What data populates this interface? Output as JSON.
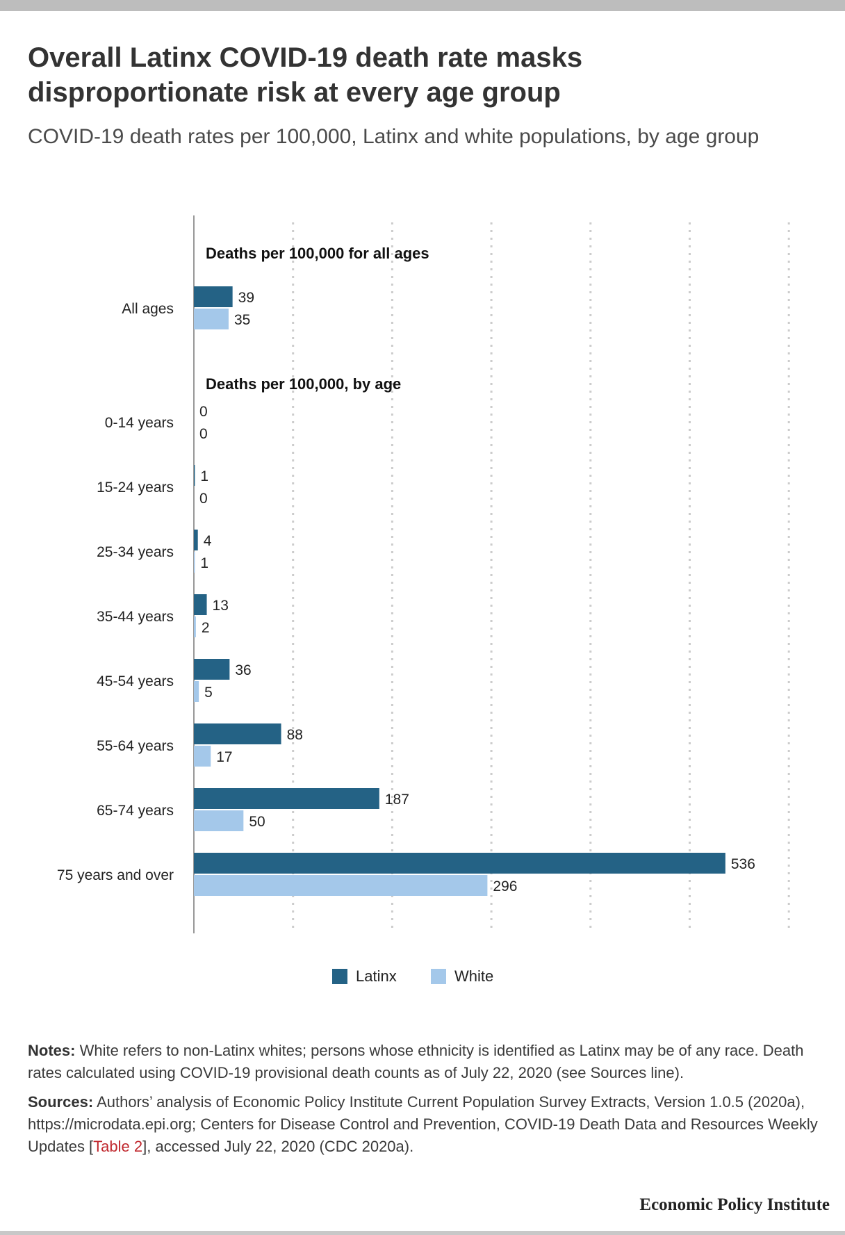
{
  "title": "Overall Latinx COVID-19 death rate masks disproportionate risk at every age group",
  "subtitle": "COVID-19 death rates per 100,000, Latinx and white populations, by age group",
  "colors": {
    "latinx": "#246285",
    "white": "#a4c8ea",
    "grid": "#cccccc",
    "axis": "#999999"
  },
  "chart_data": {
    "type": "bar",
    "orientation": "horizontal",
    "xlim": [
      0,
      600
    ],
    "grid": true,
    "legend_position": "bottom",
    "sections": [
      {
        "heading": "Deaths per 100,000 for all ages",
        "categories": [
          "All ages"
        ]
      },
      {
        "heading": "Deaths per 100,000, by age",
        "categories": [
          "0-14 years",
          "15-24 years",
          "25-34 years",
          "35-44 years",
          "45-54 years",
          "55-64 years",
          "65-74 years",
          "75 years and over"
        ]
      }
    ],
    "categories": [
      "All ages",
      "0-14 years",
      "15-24 years",
      "25-34 years",
      "35-44 years",
      "45-54 years",
      "55-64 years",
      "65-74 years",
      "75 years and over"
    ],
    "series": [
      {
        "name": "Latinx",
        "color": "#246285",
        "values": [
          39,
          0,
          1,
          4,
          13,
          36,
          88,
          187,
          536
        ]
      },
      {
        "name": "White",
        "color": "#a4c8ea",
        "values": [
          35,
          0,
          0,
          1,
          2,
          5,
          17,
          50,
          296
        ]
      }
    ]
  },
  "notes": {
    "label": "Notes:",
    "text": "White refers to non-Latinx whites; persons whose ethnicity is identified as Latinx may be of any race. Death rates calculated using COVID-19 provisional death counts as of July 22, 2020 (see Sources line)."
  },
  "sources": {
    "label": "Sources:",
    "text_before": "Authors’ analysis of Economic Policy Institute Current Population Survey Extracts, Version 1.0.5 (2020a), https://microdata.epi.org; Centers for Disease Control and Prevention, COVID-19 Death Data and Resources Weekly Updates [",
    "link": "Table 2",
    "text_after": "], accessed July 22, 2020 (CDC 2020a)."
  },
  "brand": "Economic Policy Institute"
}
